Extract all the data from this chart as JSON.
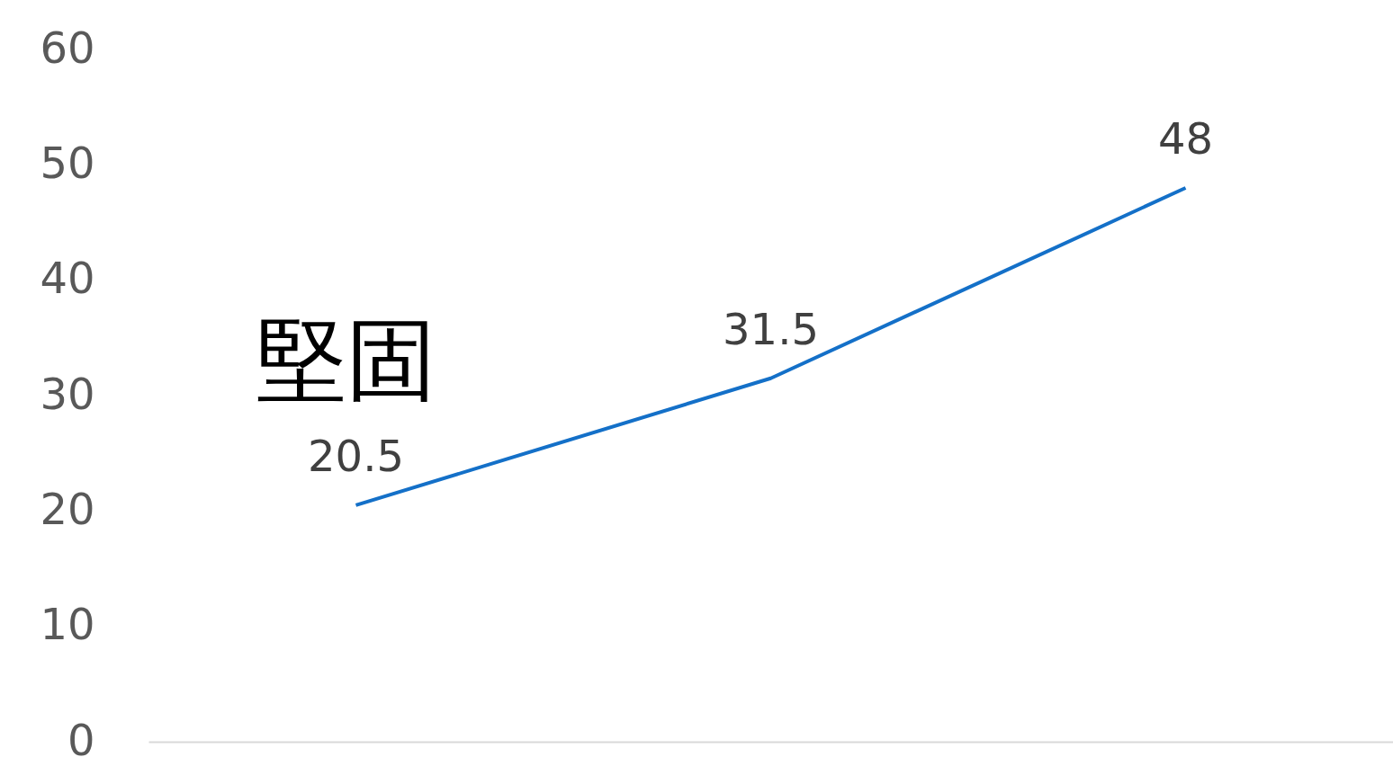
{
  "chart_data": {
    "type": "line",
    "categories": [
      null,
      null,
      null
    ],
    "series": [
      {
        "color": "#1470c8",
        "values": [
          20.5,
          31.5,
          48
        ]
      }
    ],
    "ylim": [
      0,
      60
    ],
    "yticks": [
      0,
      10,
      20,
      30,
      40,
      50,
      60
    ],
    "data_labels": true,
    "tick_labels": "y",
    "marker": "none",
    "annotations": [
      "堅固"
    ]
  }
}
